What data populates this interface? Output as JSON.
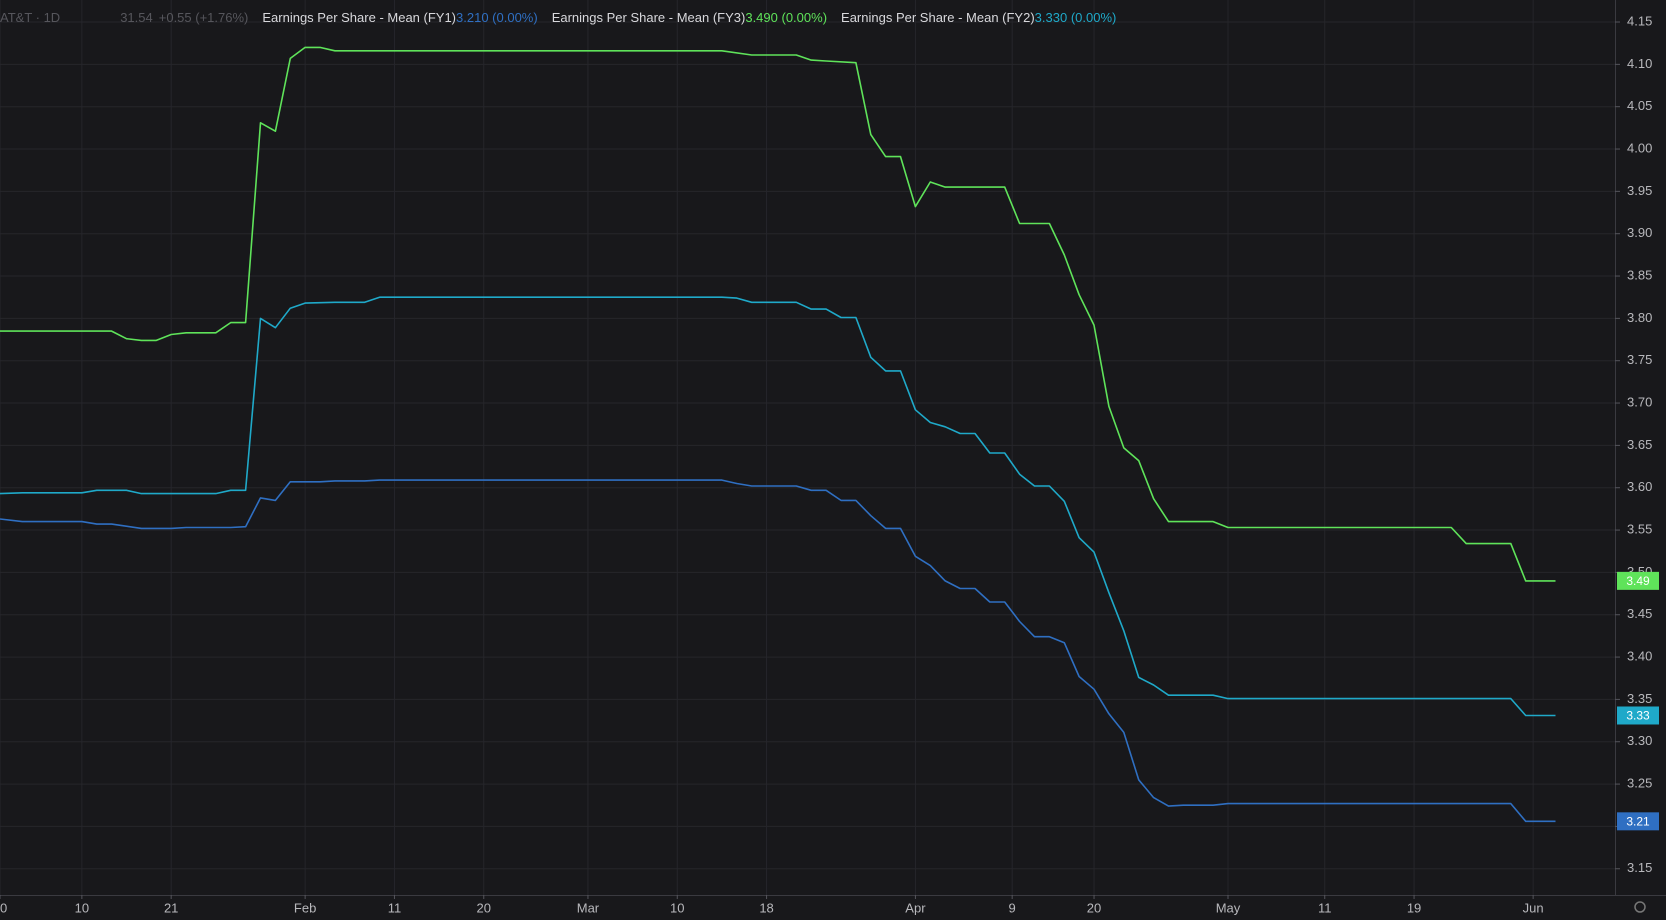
{
  "chart_data": {
    "type": "line",
    "header_title": "AT&T · 1D",
    "header_price": "31.54",
    "header_change": "+0.55 (+1.76%)",
    "xlim": [
      0,
      217
    ],
    "xticks": [
      {
        "value": 0,
        "label": "0"
      },
      {
        "value": 11,
        "label": "10"
      },
      {
        "value": 23,
        "label": "21"
      },
      {
        "value": 41,
        "label": "Feb"
      },
      {
        "value": 53,
        "label": "11"
      },
      {
        "value": 65,
        "label": "20"
      },
      {
        "value": 79,
        "label": "Mar"
      },
      {
        "value": 91,
        "label": "10"
      },
      {
        "value": 103,
        "label": "18"
      },
      {
        "value": 123,
        "label": "Apr"
      },
      {
        "value": 136,
        "label": "9"
      },
      {
        "value": 147,
        "label": "20"
      },
      {
        "value": 165,
        "label": "May"
      },
      {
        "value": 178,
        "label": "11"
      },
      {
        "value": 190,
        "label": "19"
      },
      {
        "value": 206,
        "label": "Jun"
      }
    ],
    "ylim": [
      3.119,
      4.176
    ],
    "yticks": [
      3.15,
      {
        "value": 3.2,
        "label": "3.20"
      },
      3.25,
      {
        "value": 3.3,
        "label": "3.30"
      },
      3.35,
      {
        "value": 3.4,
        "label": "3.40"
      },
      3.45,
      {
        "value": 3.5,
        "label": "3.50"
      },
      3.55,
      {
        "value": 3.6,
        "label": "3.60"
      },
      3.65,
      {
        "value": 3.7,
        "label": "3.70"
      },
      3.75,
      {
        "value": 3.8,
        "label": "3.80"
      },
      3.85,
      {
        "value": 3.9,
        "label": "3.90"
      },
      3.95,
      {
        "value": 4,
        "label": "4.00"
      },
      4.05,
      {
        "value": 4.1,
        "label": "4.10"
      },
      4.15
    ],
    "grid": true,
    "series": [
      {
        "name": "Earnings Per Share - Mean (FY1)",
        "color": "#2f6fc2",
        "legend_value": "3.21",
        "legend_change": "0 (0.00%)",
        "x": [
          0,
          3,
          11,
          13,
          15,
          19,
          23,
          25,
          31,
          33,
          35,
          37,
          39,
          43,
          45,
          49,
          51,
          97,
          99,
          101,
          107,
          109,
          111,
          113,
          115,
          117,
          119,
          121,
          123,
          125,
          127,
          129,
          131,
          133,
          135,
          137,
          139,
          141,
          143,
          145,
          147,
          149,
          151,
          153,
          155,
          157,
          159,
          163,
          165,
          203,
          205,
          209
        ],
        "values": [
          3.563,
          3.56,
          3.56,
          3.557,
          3.557,
          3.552,
          3.552,
          3.553,
          3.553,
          3.554,
          3.588,
          3.585,
          3.607,
          3.607,
          3.608,
          3.608,
          3.609,
          3.609,
          3.605,
          3.602,
          3.602,
          3.597,
          3.597,
          3.585,
          3.585,
          3.567,
          3.552,
          3.552,
          3.519,
          3.508,
          3.49,
          3.481,
          3.481,
          3.465,
          3.465,
          3.442,
          3.424,
          3.424,
          3.417,
          3.377,
          3.362,
          3.333,
          3.311,
          3.255,
          3.234,
          3.224,
          3.225,
          3.225,
          3.227,
          3.227,
          3.206,
          3.206
        ]
      },
      {
        "name": "Earnings Per Share - Mean (FY3)",
        "color": "#5fe35a",
        "legend_value": "3.49",
        "legend_change": "0 (0.00%)",
        "x": [
          0,
          15,
          17,
          19,
          21,
          23,
          25,
          29,
          31,
          33,
          35,
          37,
          39,
          41,
          43,
          45,
          97,
          101,
          107,
          109,
          111,
          115,
          117,
          119,
          121,
          123,
          125,
          127,
          135,
          137,
          141,
          143,
          145,
          147,
          149,
          151,
          153,
          155,
          157,
          159,
          163,
          165,
          195,
          197,
          203,
          205,
          209
        ],
        "values": [
          3.785,
          3.785,
          3.776,
          3.774,
          3.774,
          3.781,
          3.783,
          3.783,
          3.795,
          3.795,
          4.031,
          4.021,
          4.107,
          4.12,
          4.12,
          4.116,
          4.116,
          4.111,
          4.111,
          4.105,
          4.104,
          4.102,
          4.017,
          3.991,
          3.991,
          3.932,
          3.961,
          3.955,
          3.955,
          3.912,
          3.912,
          3.875,
          3.828,
          3.792,
          3.696,
          3.647,
          3.632,
          3.587,
          3.56,
          3.56,
          3.56,
          3.553,
          3.553,
          3.534,
          3.534,
          3.49,
          3.49
        ]
      },
      {
        "name": "Earnings Per Share - Mean (FY2)",
        "color": "#1fa9c9",
        "legend_value": "3.33",
        "legend_change": "0 (0.00%)",
        "x": [
          0,
          3,
          11,
          13,
          17,
          19,
          29,
          31,
          33,
          35,
          37,
          39,
          41,
          45,
          49,
          51,
          97,
          99,
          101,
          107,
          109,
          111,
          113,
          115,
          117,
          119,
          121,
          123,
          125,
          127,
          129,
          131,
          133,
          135,
          137,
          139,
          141,
          143,
          145,
          147,
          149,
          151,
          153,
          155,
          157,
          163,
          165,
          203,
          205,
          209
        ],
        "values": [
          3.593,
          3.594,
          3.594,
          3.597,
          3.597,
          3.593,
          3.593,
          3.597,
          3.597,
          3.8,
          3.789,
          3.812,
          3.818,
          3.819,
          3.819,
          3.825,
          3.825,
          3.824,
          3.819,
          3.819,
          3.811,
          3.811,
          3.801,
          3.801,
          3.754,
          3.738,
          3.738,
          3.692,
          3.677,
          3.672,
          3.664,
          3.664,
          3.641,
          3.641,
          3.616,
          3.602,
          3.602,
          3.584,
          3.541,
          3.524,
          3.476,
          3.431,
          3.376,
          3.367,
          3.355,
          3.355,
          3.351,
          3.351,
          3.331,
          3.331
        ]
      }
    ]
  }
}
